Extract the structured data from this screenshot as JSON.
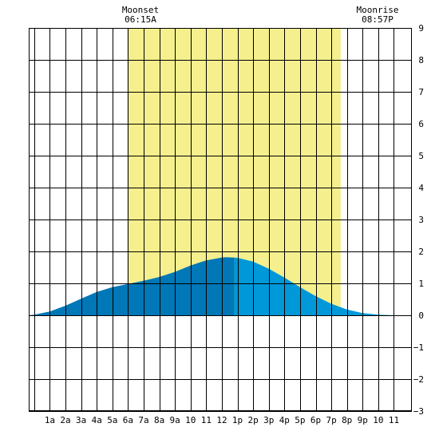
{
  "chart_data": {
    "type": "area",
    "x_tick_labels": [
      "1a",
      "2a",
      "3a",
      "4a",
      "5a",
      "6a",
      "7a",
      "8a",
      "9a",
      "10",
      "11",
      "12",
      "1p",
      "2p",
      "3p",
      "4p",
      "5p",
      "6p",
      "7p",
      "8p",
      "9p",
      "10",
      "11"
    ],
    "ylim": [
      -3,
      9
    ],
    "xlim": [
      -0.35,
      24.15
    ],
    "y_ticks": [
      9,
      8,
      7,
      6,
      5,
      4,
      3,
      2,
      1,
      0,
      -1,
      -2,
      -3
    ],
    "grid": true,
    "annotations": {
      "moonset": {
        "label": "Moonset",
        "time": "06:15A",
        "hour": 6.25
      },
      "moonrise": {
        "label": "Moonrise",
        "time": "08:57P",
        "hour": 20.95
      }
    },
    "daylight": {
      "start_hour": 5.95,
      "end_hour": 19.6
    },
    "tide": {
      "x": [
        -0.35,
        0,
        1,
        2,
        3,
        4,
        5,
        6,
        7,
        8,
        9,
        10,
        11,
        12,
        12.3,
        13,
        14,
        15,
        16,
        17,
        18,
        19,
        20,
        21,
        22,
        23,
        24,
        24.15
      ],
      "y": [
        0.0,
        0.02,
        0.12,
        0.3,
        0.52,
        0.73,
        0.88,
        0.98,
        1.08,
        1.2,
        1.36,
        1.56,
        1.72,
        1.81,
        1.82,
        1.8,
        1.68,
        1.46,
        1.18,
        0.88,
        0.6,
        0.36,
        0.18,
        0.07,
        0.02,
        0.0,
        0.0,
        0.0
      ],
      "split_hour": 12.8
    },
    "colors": {
      "daylight": "#f5ef8e",
      "tide_before": "#0077b6",
      "tide_after": "#0098d9",
      "grid": "#000000"
    }
  }
}
